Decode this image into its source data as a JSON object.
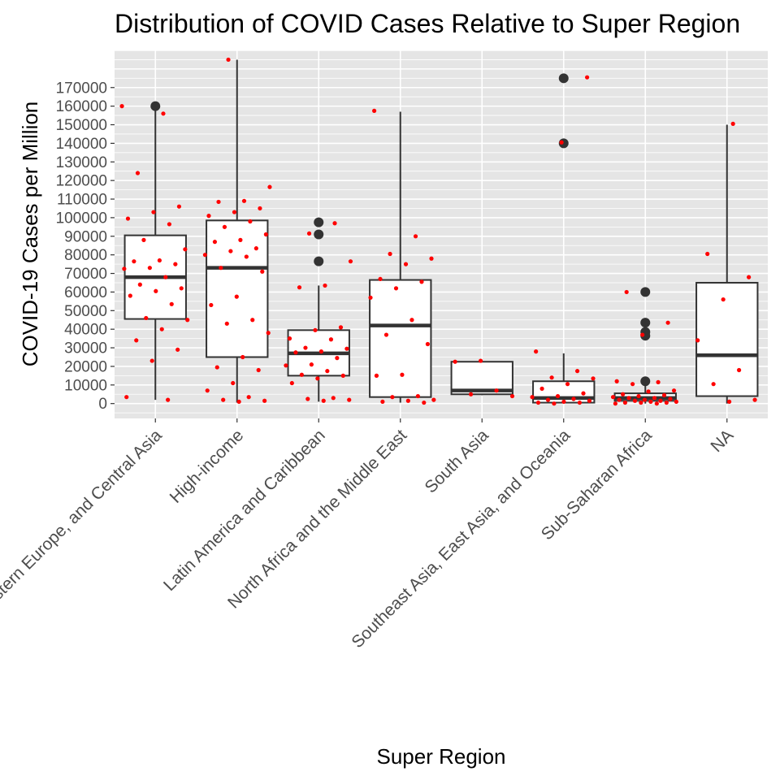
{
  "chart_data": {
    "type": "box",
    "title": "Distribution of COVID Cases Relative to Super Region",
    "xlabel": "Super Region",
    "ylabel": "COVID-19 Cases per Million",
    "ylim": [
      -8000,
      190000
    ],
    "yticks": [
      0,
      10000,
      20000,
      30000,
      40000,
      50000,
      60000,
      70000,
      80000,
      90000,
      100000,
      110000,
      120000,
      130000,
      140000,
      150000,
      160000,
      170000
    ],
    "grid": true,
    "colors": {
      "panel_bg": "#e5e5e5",
      "grid": "#ffffff",
      "box_line": "#333333",
      "box_fill": "#ffffff",
      "jitter": "#ff0000",
      "outlier": "#333333"
    },
    "categories": [
      "Central Europe, Eastern Europe, and Central Asia",
      "High-income",
      "Latin America and Caribbean",
      "North Africa and the Middle East",
      "South Asia",
      "Southeast Asia, East Asia, and Oceania",
      "Sub-Saharan Africa",
      "NA"
    ],
    "boxes": [
      {
        "category": "Central Europe, Eastern Europe, and Central Asia",
        "min": 2000,
        "q1": 45500,
        "median": 68000,
        "q3": 90500,
        "max": 160000,
        "outliers": [
          160000
        ]
      },
      {
        "category": "High-income",
        "min": 500,
        "q1": 25000,
        "median": 73000,
        "q3": 98500,
        "max": 185000,
        "outliers": []
      },
      {
        "category": "Latin America and Caribbean",
        "min": 1000,
        "q1": 15000,
        "median": 27000,
        "q3": 39500,
        "max": 63500,
        "outliers": [
          97500,
          91000,
          76500
        ]
      },
      {
        "category": "North Africa and the Middle East",
        "min": 500,
        "q1": 3500,
        "median": 42000,
        "q3": 66500,
        "max": 157000,
        "outliers": []
      },
      {
        "category": "South Asia",
        "min": 4500,
        "q1": 5000,
        "median": 7000,
        "q3": 22500,
        "max": 22500,
        "outliers": []
      },
      {
        "category": "Southeast Asia, East Asia, and Oceania",
        "min": 0,
        "q1": 500,
        "median": 3000,
        "q3": 12000,
        "max": 27000,
        "outliers": [
          175000,
          140000
        ]
      },
      {
        "category": "Sub-Saharan Africa",
        "min": 0,
        "q1": 1500,
        "median": 3000,
        "q3": 5500,
        "max": 10500,
        "outliers": [
          60000,
          43500,
          38500,
          36500,
          12000
        ]
      },
      {
        "category": "NA",
        "min": 0,
        "q1": 4000,
        "median": 26000,
        "q3": 65000,
        "max": 150000,
        "outliers": []
      }
    ],
    "jitter_points": [
      {
        "category": "Central Europe, Eastern Europe, and Central Asia",
        "values": [
          160000,
          156000,
          124000,
          106000,
          103000,
          99500,
          96500,
          88000,
          83000,
          77000,
          76500,
          75000,
          73000,
          72500,
          68000,
          64000,
          62000,
          60500,
          58000,
          53500,
          46000,
          45000,
          40000,
          34000,
          29000,
          23000,
          3500,
          2000
        ]
      },
      {
        "category": "High-income",
        "values": [
          185000,
          116500,
          109000,
          108500,
          105000,
          103000,
          101000,
          98000,
          95000,
          91000,
          88000,
          87000,
          83500,
          82000,
          80000,
          79000,
          73000,
          71000,
          57500,
          53000,
          45000,
          43000,
          38000,
          25000,
          19500,
          18000,
          11000,
          7000,
          3500,
          2000,
          1500,
          1000
        ]
      },
      {
        "category": "Latin America and Caribbean",
        "values": [
          97000,
          91500,
          76500,
          63500,
          62500,
          41000,
          39500,
          35000,
          34500,
          30000,
          29500,
          28000,
          27500,
          24500,
          21000,
          20500,
          17500,
          15500,
          15000,
          13500,
          11000,
          3000,
          2500,
          2000,
          1500
        ]
      },
      {
        "category": "North Africa and the Middle East",
        "values": [
          157500,
          90000,
          80500,
          78000,
          75000,
          67000,
          65500,
          62000,
          57000,
          45000,
          37000,
          32000,
          15500,
          15000,
          4000,
          3500,
          2000,
          1500,
          1000,
          500
        ]
      },
      {
        "category": "South Asia",
        "values": [
          23000,
          22500,
          7000,
          5000,
          4000
        ]
      },
      {
        "category": "Southeast Asia, East Asia, and Oceania",
        "values": [
          175500,
          140500,
          28000,
          17500,
          14000,
          13500,
          10500,
          8000,
          5500,
          4000,
          3500,
          2500,
          2000,
          1500,
          1000,
          500,
          500,
          0
        ]
      },
      {
        "category": "Sub-Saharan Africa",
        "values": [
          60000,
          43500,
          37000,
          12000,
          11500,
          10500,
          7000,
          6500,
          5000,
          4500,
          4000,
          3500,
          3000,
          3000,
          2500,
          2000,
          2000,
          1500,
          1500,
          1000,
          1000,
          500,
          500,
          500,
          0,
          0
        ]
      },
      {
        "category": "NA",
        "values": [
          150500,
          80500,
          68000,
          56000,
          34000,
          18000,
          10500,
          2000,
          1000
        ]
      }
    ]
  }
}
